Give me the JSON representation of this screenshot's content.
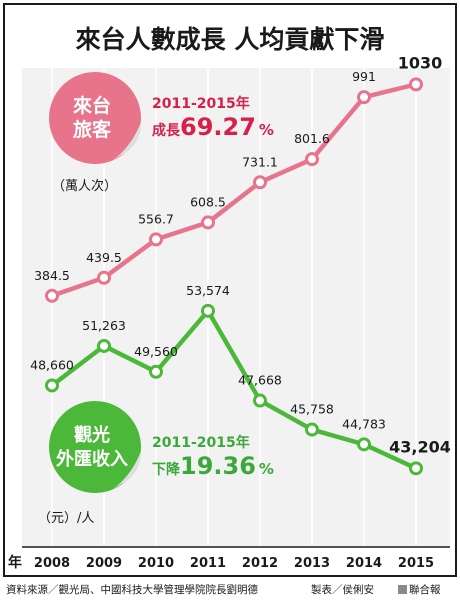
{
  "title": "來台人數成長 人均貢獻下滑",
  "visitors": {
    "badge_line1": "來台",
    "badge_line2": "旅客",
    "unit": "（萬人次）",
    "growth_period": "2011-2015年",
    "growth_label": "成長",
    "growth_value": "69.27",
    "growth_pct": "%"
  },
  "spending": {
    "badge_line1": "觀光",
    "badge_line2": "外匯收入",
    "unit": "（元）/人",
    "decline_period": "2011-2015年",
    "decline_label": "下降",
    "decline_value": "19.36",
    "decline_pct": "%"
  },
  "x_axis_prefix": "年",
  "footer": {
    "source": "資料來源／觀光局、中國科技大學管理學院院長劉明德",
    "maker": "製表／侯俐安",
    "publisher": "聯合報"
  },
  "colors": {
    "pink": "#e8748c",
    "green": "#4cb83a",
    "growth_red": "#d6204a",
    "decline_green": "#3aa83a"
  },
  "chart_data": [
    {
      "type": "line",
      "title": "來台旅客",
      "ylabel": "（萬人次）",
      "x": [
        "2008",
        "2009",
        "2010",
        "2011",
        "2012",
        "2013",
        "2014",
        "2015"
      ],
      "values": [
        384.5,
        439.5,
        556.7,
        608.5,
        731.1,
        801.6,
        991,
        1030
      ],
      "labels": [
        "384.5",
        "439.5",
        "556.7",
        "608.5",
        "731.1",
        "801.6",
        "991",
        "1030"
      ],
      "ylim": [
        280,
        1080
      ],
      "grid": true
    },
    {
      "type": "line",
      "title": "觀光外匯收入",
      "ylabel": "（元）/人",
      "x": [
        "2008",
        "2009",
        "2010",
        "2011",
        "2012",
        "2013",
        "2014",
        "2015"
      ],
      "values": [
        48660,
        51263,
        49560,
        53574,
        47668,
        45758,
        44783,
        43204
      ],
      "labels": [
        "48,660",
        "51,263",
        "49,560",
        "53,574",
        "47,668",
        "45,758",
        "44,783",
        "43,204"
      ],
      "ylim": [
        40000,
        56000
      ],
      "grid": true
    }
  ]
}
